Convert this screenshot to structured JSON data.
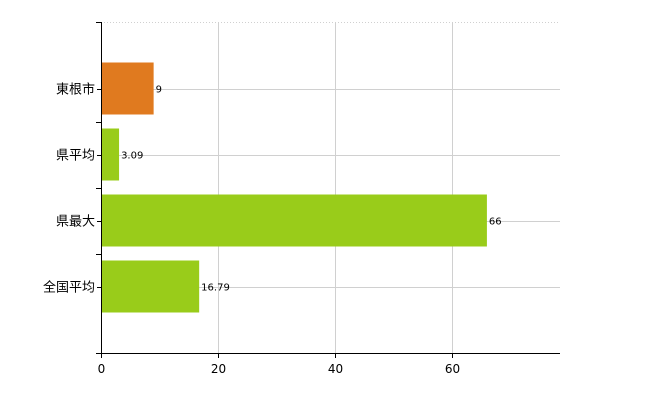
{
  "chart_data": {
    "type": "bar",
    "orientation": "horizontal",
    "categories": [
      "東根市",
      "県平均",
      "県最大",
      "全国平均"
    ],
    "values": [
      9,
      3.09,
      66,
      16.79
    ],
    "value_labels": [
      "9",
      "3.09",
      "66",
      "16.79"
    ],
    "bar_colors": [
      "#e07a1f",
      "#99cc1a",
      "#99cc1a",
      "#99cc1a"
    ],
    "title": "",
    "xlabel": "",
    "ylabel": "",
    "xlim": [
      0,
      78.5
    ],
    "x_ticks": [
      0,
      20,
      40,
      60
    ],
    "grid": true,
    "legend": "none"
  }
}
